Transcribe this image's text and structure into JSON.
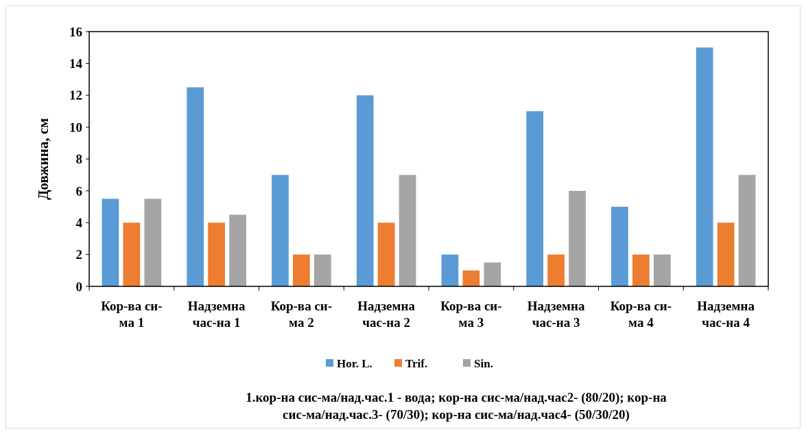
{
  "chart_data": {
    "type": "bar",
    "ylabel": "Довжина, см",
    "categories": [
      "Кор-ва си-\nма 1",
      "Надземна\nчас-на 1",
      "Кор-ва си-\nма 2",
      "Надземна\nчас-на 2",
      "Кор-ва си-\nма 3",
      "Надземна\nчас-на 3",
      "Кор-ва си-\nма 4",
      "Надземна\nчас-на 4"
    ],
    "series": [
      {
        "name": "Hor. L.",
        "color": "#5b9bd5",
        "values": [
          5.5,
          12.5,
          7,
          12,
          2,
          11,
          5,
          15
        ]
      },
      {
        "name": "Trif.",
        "color": "#ed7d31",
        "values": [
          4,
          4,
          2,
          4,
          1,
          2,
          2,
          4
        ]
      },
      {
        "name": "Sin.",
        "color": "#a5a5a5",
        "values": [
          5.5,
          4.5,
          2,
          7,
          1.5,
          6,
          2,
          7
        ]
      }
    ],
    "ylim": [
      0,
      16
    ],
    "yticks": [
      0,
      2,
      4,
      6,
      8,
      10,
      12,
      14,
      16
    ],
    "grid": false,
    "legend": "bottom",
    "annotations": [
      "1.кор-на сис-ма/над.час.1 - вода; кор-на сис-ма/над.час2-  (80/20); кор-на\nсис-ма/над.час.3- (70/30); кор-на сис-ма/над.час4- (50/30/20)"
    ]
  }
}
